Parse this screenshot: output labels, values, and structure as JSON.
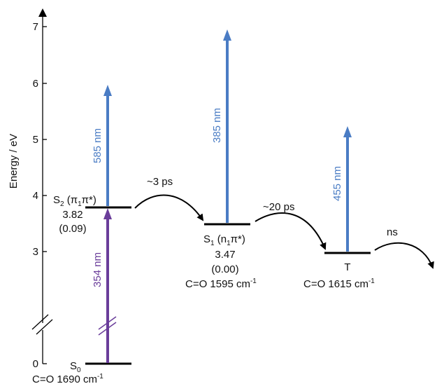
{
  "axis": {
    "title": "Energy / eV",
    "ticks": [
      {
        "value": 0,
        "label": "0"
      },
      {
        "value": 3,
        "label": "3"
      },
      {
        "value": 4,
        "label": "4"
      },
      {
        "value": 5,
        "label": "5"
      },
      {
        "value": 6,
        "label": "6"
      },
      {
        "value": 7,
        "label": "7"
      }
    ]
  },
  "states": {
    "s0": {
      "letter": "S",
      "sub": "0",
      "freq_label": "C=O 1690 cm",
      "freq_sup": "-1"
    },
    "s2": {
      "letter": "S",
      "sub": "2",
      "char_open": " (π",
      "char_sub": "1",
      "char_close": "π*)",
      "energy": "3.82",
      "osc": "(0.09)"
    },
    "s1": {
      "letter": "S",
      "sub": "1",
      "char_open": " (n",
      "char_sub": "1",
      "char_close": "π*)",
      "energy": "3.47",
      "osc": "(0.00)",
      "freq_label": "C=O 1595 cm",
      "freq_sup": "-1"
    },
    "t": {
      "label": "T",
      "freq_label": "C=O 1615 cm",
      "freq_sup": "-1"
    }
  },
  "transitions": {
    "excitation": {
      "label": "354 nm",
      "color": "#6a3d9a"
    },
    "probe_s2": {
      "label": "585 nm",
      "color": "#4a7cc4"
    },
    "probe_s1": {
      "label": "385 nm",
      "color": "#4a7cc4"
    },
    "probe_t": {
      "label": "455 nm",
      "color": "#4a7cc4"
    }
  },
  "relaxation": {
    "s2_to_s1": "~3 ps",
    "s1_to_t": "~20 ps",
    "t_decay": "ns"
  }
}
